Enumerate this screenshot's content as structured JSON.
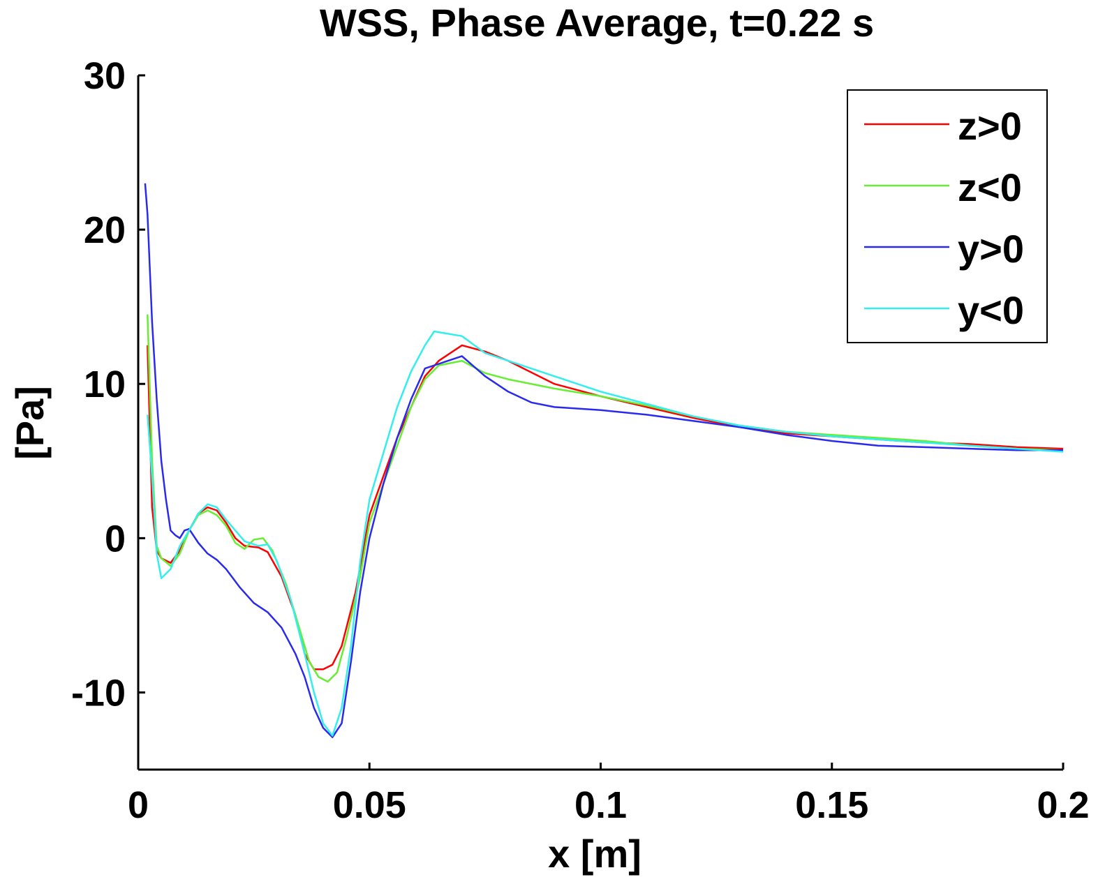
{
  "chart_data": {
    "type": "line",
    "title": "WSS, Phase Average, t=0.22 s",
    "xlabel": "x [m]",
    "ylabel": "[Pa]",
    "xlim": [
      0,
      0.2
    ],
    "ylim": [
      -15,
      30
    ],
    "x_ticks": [
      "0",
      "0.05",
      "0.1",
      "0.15",
      "0.2"
    ],
    "x_tick_values": [
      0,
      0.05,
      0.1,
      0.15,
      0.2
    ],
    "y_ticks": [
      "30",
      "20",
      "10",
      "0",
      "-10"
    ],
    "y_tick_values": [
      30,
      20,
      10,
      0,
      -10
    ],
    "grid": false,
    "legend_position": "top-right",
    "series": [
      {
        "name": "z>0",
        "color": "#ff0000",
        "points": [
          [
            0.002,
            12.5
          ],
          [
            0.003,
            2.0
          ],
          [
            0.004,
            -0.8
          ],
          [
            0.005,
            -1.3
          ],
          [
            0.007,
            -1.6
          ],
          [
            0.009,
            -0.8
          ],
          [
            0.011,
            0.5
          ],
          [
            0.013,
            1.6
          ],
          [
            0.015,
            2.0
          ],
          [
            0.017,
            1.8
          ],
          [
            0.019,
            1.0
          ],
          [
            0.021,
            0.0
          ],
          [
            0.023,
            -0.5
          ],
          [
            0.026,
            -0.6
          ],
          [
            0.028,
            -0.9
          ],
          [
            0.031,
            -2.5
          ],
          [
            0.034,
            -5.0
          ],
          [
            0.036,
            -7.5
          ],
          [
            0.038,
            -8.5
          ],
          [
            0.04,
            -8.5
          ],
          [
            0.042,
            -8.2
          ],
          [
            0.044,
            -7.0
          ],
          [
            0.047,
            -3.5
          ],
          [
            0.05,
            1.5
          ],
          [
            0.053,
            4.0
          ],
          [
            0.056,
            6.5
          ],
          [
            0.059,
            8.5
          ],
          [
            0.062,
            10.5
          ],
          [
            0.065,
            11.5
          ],
          [
            0.07,
            12.5
          ],
          [
            0.075,
            12.1
          ],
          [
            0.08,
            11.5
          ],
          [
            0.09,
            10.0
          ],
          [
            0.1,
            9.2
          ],
          [
            0.11,
            8.5
          ],
          [
            0.12,
            7.8
          ],
          [
            0.13,
            7.2
          ],
          [
            0.14,
            6.8
          ],
          [
            0.15,
            6.6
          ],
          [
            0.16,
            6.4
          ],
          [
            0.17,
            6.2
          ],
          [
            0.18,
            6.1
          ],
          [
            0.19,
            5.9
          ],
          [
            0.2,
            5.8
          ]
        ]
      },
      {
        "name": "z<0",
        "color": "#66ee33",
        "points": [
          [
            0.002,
            14.5
          ],
          [
            0.003,
            5.0
          ],
          [
            0.004,
            -0.5
          ],
          [
            0.005,
            -1.3
          ],
          [
            0.007,
            -1.8
          ],
          [
            0.009,
            -1.0
          ],
          [
            0.011,
            0.5
          ],
          [
            0.013,
            1.5
          ],
          [
            0.015,
            1.8
          ],
          [
            0.017,
            1.5
          ],
          [
            0.019,
            0.8
          ],
          [
            0.021,
            -0.3
          ],
          [
            0.023,
            -0.7
          ],
          [
            0.025,
            -0.1
          ],
          [
            0.027,
            0.0
          ],
          [
            0.029,
            -0.8
          ],
          [
            0.032,
            -3.0
          ],
          [
            0.035,
            -6.0
          ],
          [
            0.037,
            -8.0
          ],
          [
            0.039,
            -9.0
          ],
          [
            0.041,
            -9.3
          ],
          [
            0.043,
            -8.7
          ],
          [
            0.045,
            -6.5
          ],
          [
            0.048,
            -2.5
          ],
          [
            0.05,
            1.0
          ],
          [
            0.053,
            3.5
          ],
          [
            0.056,
            6.0
          ],
          [
            0.059,
            8.5
          ],
          [
            0.062,
            10.3
          ],
          [
            0.065,
            11.2
          ],
          [
            0.07,
            11.5
          ],
          [
            0.075,
            10.7
          ],
          [
            0.08,
            10.3
          ],
          [
            0.09,
            9.7
          ],
          [
            0.1,
            9.2
          ],
          [
            0.11,
            8.6
          ],
          [
            0.12,
            7.9
          ],
          [
            0.13,
            7.3
          ],
          [
            0.14,
            6.9
          ],
          [
            0.15,
            6.7
          ],
          [
            0.16,
            6.5
          ],
          [
            0.17,
            6.3
          ],
          [
            0.18,
            6.0
          ],
          [
            0.19,
            5.8
          ],
          [
            0.2,
            5.7
          ]
        ]
      },
      {
        "name": "y>0",
        "color": "#2a2aee",
        "points": [
          [
            0.0015,
            23.0
          ],
          [
            0.002,
            21.0
          ],
          [
            0.003,
            14.0
          ],
          [
            0.004,
            9.0
          ],
          [
            0.005,
            5.0
          ],
          [
            0.006,
            2.5
          ],
          [
            0.007,
            0.5
          ],
          [
            0.008,
            0.2
          ],
          [
            0.009,
            0.0
          ],
          [
            0.01,
            0.5
          ],
          [
            0.011,
            0.6
          ],
          [
            0.013,
            -0.3
          ],
          [
            0.015,
            -1.0
          ],
          [
            0.017,
            -1.4
          ],
          [
            0.019,
            -2.0
          ],
          [
            0.022,
            -3.2
          ],
          [
            0.025,
            -4.2
          ],
          [
            0.028,
            -4.8
          ],
          [
            0.031,
            -5.8
          ],
          [
            0.034,
            -7.5
          ],
          [
            0.036,
            -9.0
          ],
          [
            0.038,
            -11.0
          ],
          [
            0.04,
            -12.3
          ],
          [
            0.042,
            -12.9
          ],
          [
            0.044,
            -12.0
          ],
          [
            0.046,
            -8.0
          ],
          [
            0.048,
            -3.5
          ],
          [
            0.05,
            0.0
          ],
          [
            0.053,
            3.5
          ],
          [
            0.056,
            6.5
          ],
          [
            0.059,
            9.0
          ],
          [
            0.062,
            11.0
          ],
          [
            0.065,
            11.3
          ],
          [
            0.07,
            11.8
          ],
          [
            0.075,
            10.5
          ],
          [
            0.08,
            9.5
          ],
          [
            0.085,
            8.8
          ],
          [
            0.09,
            8.5
          ],
          [
            0.1,
            8.3
          ],
          [
            0.11,
            8.0
          ],
          [
            0.12,
            7.6
          ],
          [
            0.13,
            7.2
          ],
          [
            0.14,
            6.7
          ],
          [
            0.15,
            6.3
          ],
          [
            0.16,
            6.0
          ],
          [
            0.17,
            5.9
          ],
          [
            0.18,
            5.8
          ],
          [
            0.19,
            5.7
          ],
          [
            0.2,
            5.7
          ]
        ]
      },
      {
        "name": "y<0",
        "color": "#33eeee",
        "points": [
          [
            0.002,
            8.0
          ],
          [
            0.003,
            4.0
          ],
          [
            0.004,
            -1.0
          ],
          [
            0.005,
            -2.6
          ],
          [
            0.007,
            -2.0
          ],
          [
            0.009,
            -0.5
          ],
          [
            0.011,
            0.5
          ],
          [
            0.013,
            1.6
          ],
          [
            0.015,
            2.2
          ],
          [
            0.017,
            2.0
          ],
          [
            0.019,
            1.2
          ],
          [
            0.021,
            0.5
          ],
          [
            0.023,
            -0.2
          ],
          [
            0.026,
            -0.5
          ],
          [
            0.028,
            -0.4
          ],
          [
            0.03,
            -1.5
          ],
          [
            0.033,
            -4.0
          ],
          [
            0.036,
            -7.5
          ],
          [
            0.038,
            -10.0
          ],
          [
            0.04,
            -12.0
          ],
          [
            0.042,
            -12.8
          ],
          [
            0.044,
            -11.0
          ],
          [
            0.046,
            -7.0
          ],
          [
            0.048,
            -1.5
          ],
          [
            0.05,
            2.5
          ],
          [
            0.053,
            5.5
          ],
          [
            0.056,
            8.5
          ],
          [
            0.059,
            10.8
          ],
          [
            0.062,
            12.5
          ],
          [
            0.064,
            13.4
          ],
          [
            0.07,
            13.1
          ],
          [
            0.075,
            12.0
          ],
          [
            0.08,
            11.5
          ],
          [
            0.09,
            10.5
          ],
          [
            0.1,
            9.5
          ],
          [
            0.11,
            8.7
          ],
          [
            0.12,
            7.9
          ],
          [
            0.13,
            7.3
          ],
          [
            0.14,
            6.9
          ],
          [
            0.15,
            6.6
          ],
          [
            0.16,
            6.4
          ],
          [
            0.17,
            6.2
          ],
          [
            0.18,
            6.0
          ],
          [
            0.19,
            5.8
          ],
          [
            0.2,
            5.6
          ]
        ]
      }
    ]
  }
}
